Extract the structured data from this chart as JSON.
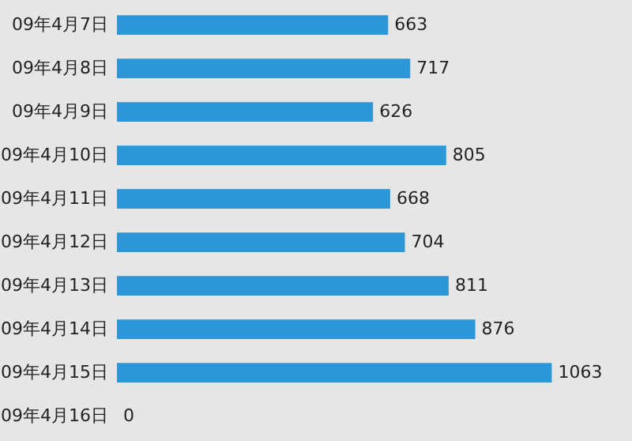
{
  "chart_data": {
    "type": "bar",
    "orientation": "horizontal",
    "data_labels": true,
    "color": "#2b97d6",
    "categories": [
      "09年4月7日",
      "09年4月8日",
      "09年4月9日",
      "09年4月10日",
      "09年4月11日",
      "09年4月12日",
      "09年4月13日",
      "09年4月14日",
      "09年4月15日",
      "09年4月16日"
    ],
    "values": [
      663,
      717,
      626,
      805,
      668,
      704,
      811,
      876,
      1063,
      0
    ]
  }
}
